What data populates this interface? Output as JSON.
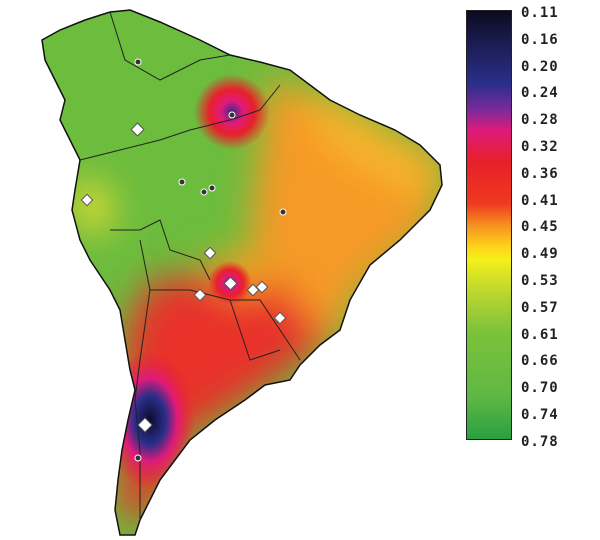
{
  "colorbar": {
    "labels": [
      "0.11",
      "0.16",
      "0.20",
      "0.24",
      "0.28",
      "0.32",
      "0.36",
      "0.41",
      "0.45",
      "0.49",
      "0.53",
      "0.57",
      "0.61",
      "0.66",
      "0.70",
      "0.74",
      "0.78"
    ],
    "colors": {
      "low": "#0b0b1e",
      "mid_low": "#2a2f8a",
      "magenta": "#e01a7a",
      "red": "#e8202a",
      "orange": "#f59020",
      "yellow": "#f4f01a",
      "green": "#5fb845",
      "high": "#2aa040"
    }
  },
  "map": {
    "region": "South America",
    "markers": {
      "diamond": "#ffffff",
      "dot": "#333333"
    }
  }
}
